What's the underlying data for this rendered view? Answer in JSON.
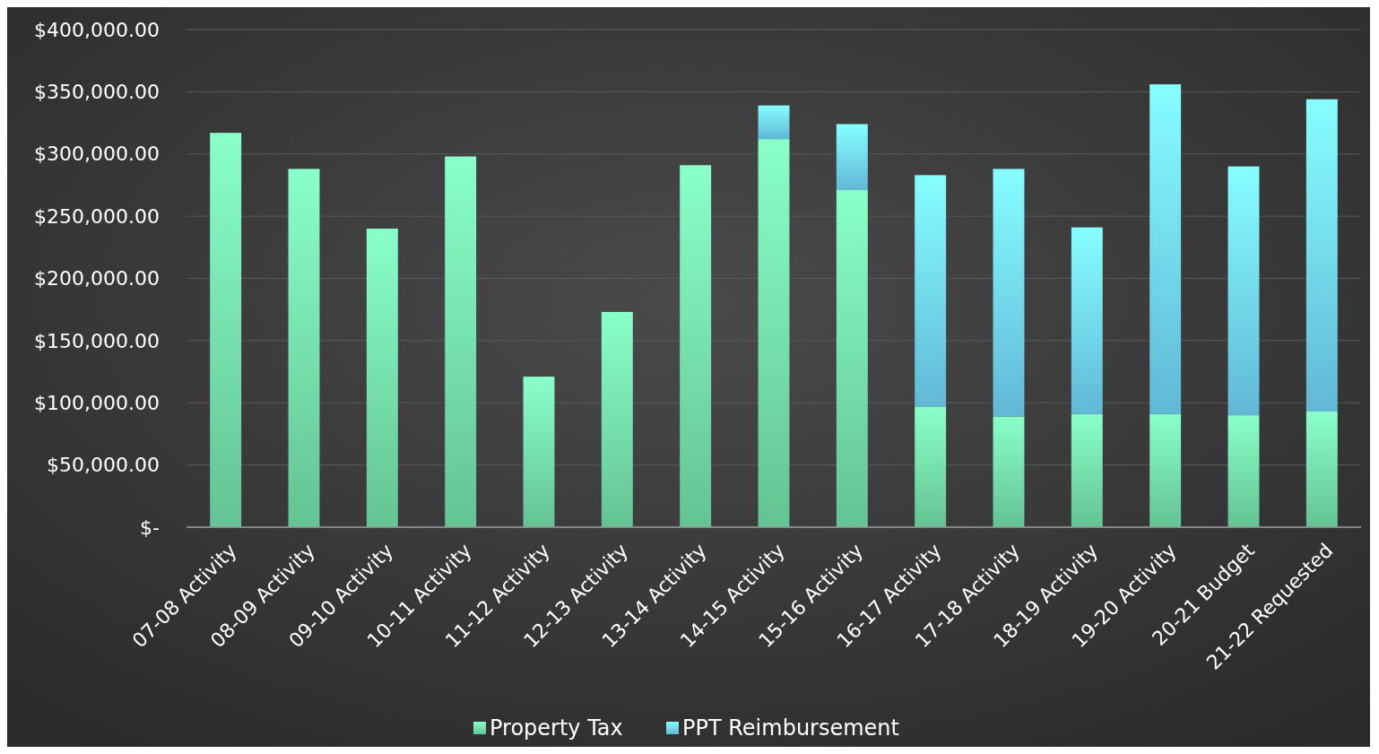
{
  "chart_data": {
    "type": "bar",
    "stacked": true,
    "categories": [
      "07-08 Activity",
      "08-09 Activity",
      "09-10 Activity",
      "10-11 Activity",
      "11-12 Activity",
      "12-13 Activity",
      "13-14 Activity",
      "14-15 Activity",
      "15-16 Activity",
      "16-17 Activity",
      "17-18 Activity",
      "18-19 Activity",
      "19-20 Activity",
      "20-21 Budget",
      "21-22 Requested"
    ],
    "series": [
      {
        "name": "Property Tax",
        "color": "#6fd9a2",
        "values": [
          317000,
          288000,
          240000,
          298000,
          121000,
          173000,
          291000,
          312000,
          271000,
          97000,
          89000,
          91000,
          91000,
          90000,
          93000
        ]
      },
      {
        "name": "PPT Reimbursement",
        "color": "#6ccdee",
        "values": [
          0,
          0,
          0,
          0,
          0,
          0,
          0,
          27000,
          53000,
          186000,
          199000,
          150000,
          265000,
          200000,
          251000
        ]
      }
    ],
    "ylim": [
      0,
      400000
    ],
    "yticks": [
      {
        "value": 0,
        "label": "$-"
      },
      {
        "value": 50000,
        "label": "$50,000.00"
      },
      {
        "value": 100000,
        "label": "$100,000.00"
      },
      {
        "value": 150000,
        "label": "$150,000.00"
      },
      {
        "value": 200000,
        "label": "$200,000.00"
      },
      {
        "value": 250000,
        "label": "$250,000.00"
      },
      {
        "value": 300000,
        "label": "$300,000.00"
      },
      {
        "value": 350000,
        "label": "$350,000.00"
      },
      {
        "value": 400000,
        "label": "$400,000.00"
      }
    ],
    "grid": "y",
    "legend": "bottom"
  }
}
